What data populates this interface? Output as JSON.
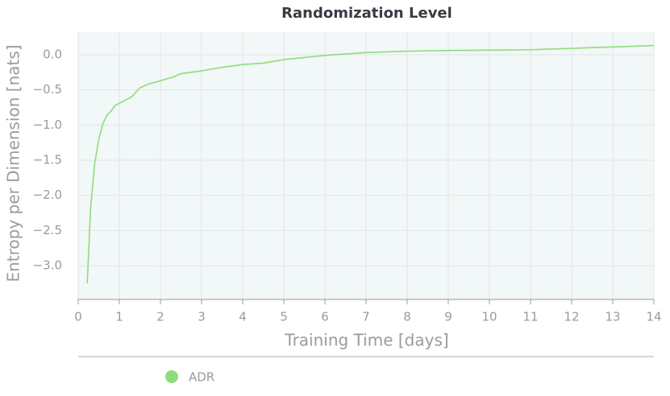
{
  "chart_data": {
    "type": "line",
    "title": "Randomization Level",
    "xlabel": "Training Time [days]",
    "ylabel": "Entropy per Dimension [nats]",
    "x": [
      0.22,
      0.3,
      0.4,
      0.5,
      0.6,
      0.7,
      0.8,
      0.9,
      1.0,
      1.3,
      1.5,
      1.7,
      2.0,
      2.3,
      2.5,
      3.0,
      3.5,
      4.0,
      4.5,
      5.0,
      5.5,
      6.0,
      6.5,
      7.0,
      7.5,
      8.0,
      9.0,
      10.0,
      11.0,
      12.0,
      13.0,
      14.0
    ],
    "series": [
      {
        "name": "ADR",
        "color": "#90dc7c",
        "values": [
          -3.25,
          -2.2,
          -1.55,
          -1.2,
          -0.98,
          -0.86,
          -0.8,
          -0.72,
          -0.69,
          -0.6,
          -0.47,
          -0.42,
          -0.37,
          -0.32,
          -0.27,
          -0.23,
          -0.18,
          -0.14,
          -0.12,
          -0.07,
          -0.04,
          -0.01,
          0.01,
          0.03,
          0.04,
          0.05,
          0.06,
          0.065,
          0.07,
          0.09,
          0.11,
          0.13
        ]
      }
    ],
    "xlim": [
      0,
      14
    ],
    "ylim": [
      -3.48,
      0.32
    ],
    "xticks": [
      0,
      1,
      2,
      3,
      4,
      5,
      6,
      7,
      8,
      9,
      10,
      11,
      12,
      13,
      14
    ],
    "yticks": [
      {
        "value": -3.0,
        "label": "−3.0"
      },
      {
        "value": -2.5,
        "label": "−2.5"
      },
      {
        "value": -2.0,
        "label": "−2.0"
      },
      {
        "value": -1.5,
        "label": "−1.5"
      },
      {
        "value": -1.0,
        "label": "−1.0"
      },
      {
        "value": -0.5,
        "label": "−0.5"
      },
      {
        "value": 0.0,
        "label": "0.0"
      }
    ],
    "grid": true,
    "legend": "bottom"
  }
}
